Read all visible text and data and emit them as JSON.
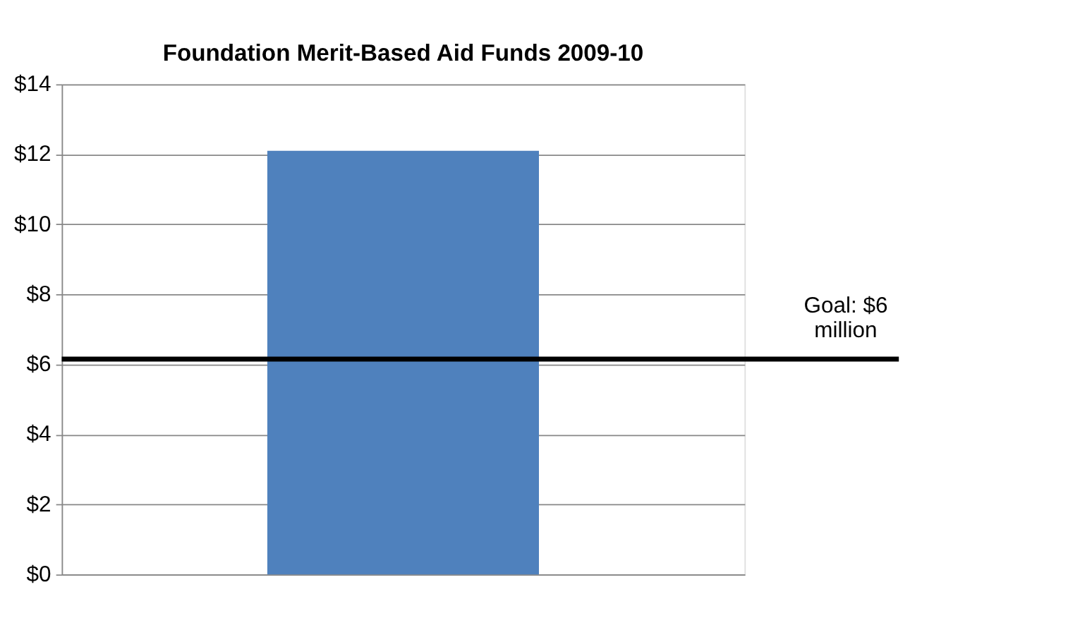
{
  "chart_data": {
    "type": "bar",
    "title": "Foundation Merit-Based Aid Funds 2009-10",
    "categories": [
      null
    ],
    "series": [
      {
        "color": "#4f81bd",
        "values": [
          12.1
        ]
      }
    ],
    "ylim": [
      0,
      14
    ],
    "yticks": [
      {
        "value": 0,
        "label": "$0"
      },
      {
        "value": 2,
        "label": "$2"
      },
      {
        "value": 4,
        "label": "$4"
      },
      {
        "value": 6,
        "label": "$6"
      },
      {
        "value": 8,
        "label": "$8"
      },
      {
        "value": 10,
        "label": "$10"
      },
      {
        "value": 12,
        "label": "$12"
      },
      {
        "value": 14,
        "label": "$14"
      }
    ],
    "grid": "y",
    "ref_lines": [
      {
        "axis": "y",
        "value": 6.15,
        "label": "Goal: $6 million",
        "color": "#000000"
      }
    ]
  }
}
